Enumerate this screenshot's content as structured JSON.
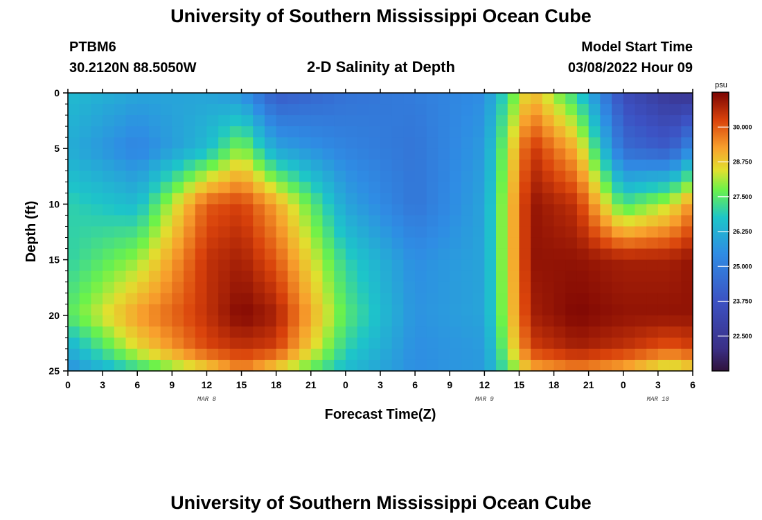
{
  "page_title": "University of Southern Mississippi Ocean Cube",
  "footer_title": "University of Southern Mississippi Ocean Cube",
  "station": {
    "id": "PTBM6",
    "coords": "30.2120N  88.5050W"
  },
  "plot_title": "2-D Salinity at Depth",
  "model_start": {
    "label": "Model Start Time",
    "value": "03/08/2022 Hour 09"
  },
  "chart_data": {
    "type": "heatmap",
    "title": "2-D Salinity at Depth",
    "xlabel": "Forecast Time(Z)",
    "ylabel": "Depth (ft)",
    "x_range_hours": [
      0,
      54
    ],
    "y_range_ft": [
      0,
      25
    ],
    "x_ticks": [
      "0",
      "3",
      "6",
      "9",
      "12",
      "15",
      "18",
      "21",
      "0",
      "3",
      "6",
      "9",
      "12",
      "15",
      "18",
      "21",
      "0",
      "3",
      "6"
    ],
    "y_ticks": [
      "0",
      "5",
      "10",
      "15",
      "20",
      "25"
    ],
    "date_labels": [
      {
        "text": "MAR 8",
        "hour": 12
      },
      {
        "text": "MAR 9",
        "hour": 36
      },
      {
        "text": "MAR 10",
        "hour": 51
      }
    ],
    "colorbar": {
      "unit": "psu",
      "min": 21.25,
      "max": 31.25,
      "ticks": [
        "30.000",
        "28.750",
        "27.500",
        "26.250",
        "25.000",
        "23.750",
        "22.500"
      ],
      "tick_values": [
        30.0,
        28.75,
        27.5,
        26.25,
        25.0,
        23.75,
        22.5
      ]
    },
    "grid": {
      "hour_step": 1,
      "depth_step_ft": 1
    },
    "salinity_profiles_psu": [
      {
        "depth_ft": 0,
        "hours": [
          0,
          6,
          12,
          15,
          18,
          24,
          30,
          36,
          40,
          44,
          48,
          52,
          54
        ],
        "psu": [
          26.5,
          26.0,
          26.0,
          25.6,
          24.0,
          24.7,
          25.0,
          25.5,
          29.0,
          27.0,
          23.5,
          22.5,
          22.3
        ]
      },
      {
        "depth_ft": 5,
        "hours": [
          0,
          6,
          12,
          15,
          18,
          24,
          30,
          36,
          40,
          44,
          48,
          52,
          54
        ],
        "psu": [
          26.2,
          25.2,
          26.5,
          28.0,
          26.0,
          25.2,
          24.8,
          25.8,
          30.5,
          29.0,
          24.5,
          24.0,
          25.5
        ]
      },
      {
        "depth_ft": 10,
        "hours": [
          0,
          6,
          12,
          15,
          18,
          24,
          30,
          36,
          40,
          44,
          48,
          52,
          54
        ],
        "psu": [
          27.0,
          26.5,
          30.0,
          30.3,
          29.2,
          26.0,
          24.8,
          26.0,
          31.0,
          30.5,
          27.3,
          28.3,
          29.5
        ]
      },
      {
        "depth_ft": 15,
        "hours": [
          0,
          6,
          12,
          15,
          18,
          24,
          30,
          36,
          40,
          44,
          48,
          52,
          54
        ],
        "psu": [
          27.0,
          28.0,
          30.5,
          30.8,
          30.0,
          27.0,
          25.5,
          26.0,
          31.0,
          31.0,
          30.8,
          30.8,
          31.0
        ]
      },
      {
        "depth_ft": 20,
        "hours": [
          0,
          6,
          12,
          15,
          18,
          24,
          30,
          36,
          40,
          44,
          48,
          52,
          54
        ],
        "psu": [
          27.5,
          29.3,
          30.5,
          31.2,
          30.8,
          27.5,
          25.6,
          26.0,
          30.8,
          31.2,
          31.0,
          31.0,
          31.0
        ]
      },
      {
        "depth_ft": 23,
        "hours": [
          0,
          6,
          12,
          15,
          18,
          24,
          30,
          36,
          40,
          44,
          48,
          52,
          54
        ],
        "psu": [
          26.2,
          28.5,
          30.2,
          30.5,
          30.3,
          27.0,
          25.5,
          25.8,
          30.3,
          30.8,
          30.5,
          30.0,
          30.3
        ]
      },
      {
        "depth_ft": 25,
        "hours": [
          0,
          6,
          12,
          15,
          18,
          24,
          30,
          36,
          40,
          44,
          48,
          52,
          54
        ],
        "psu": [
          25.5,
          27.0,
          28.5,
          29.5,
          28.5,
          26.5,
          25.5,
          25.8,
          29.0,
          29.5,
          29.0,
          28.0,
          28.5
        ]
      }
    ]
  }
}
